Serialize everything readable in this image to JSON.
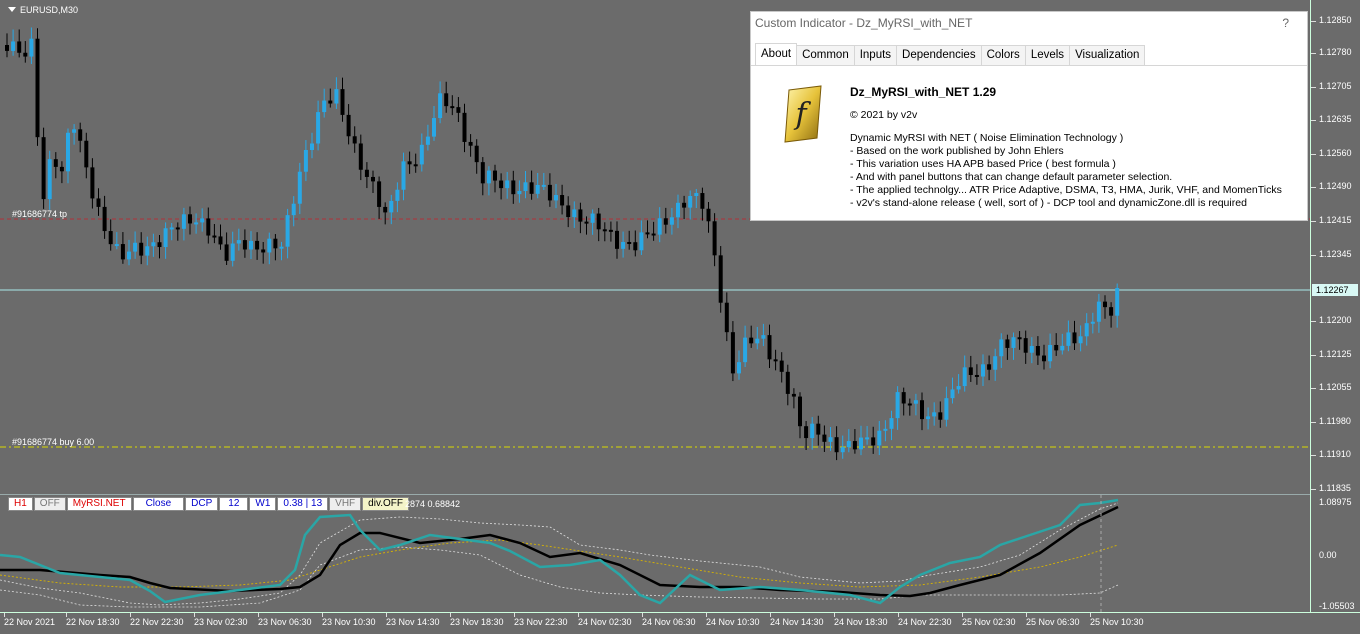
{
  "chart": {
    "symbol": "EURUSD,M30",
    "tp_label": "#91686774 tp",
    "buy_label": "#91686774 buy 6.00",
    "price_ticks": [
      "1.12850",
      "1.12780",
      "1.12705",
      "1.12635",
      "1.12560",
      "1.12490",
      "1.12415",
      "1.12345",
      "1.12200",
      "1.12125",
      "1.12055",
      "1.11980",
      "1.11910",
      "1.11835"
    ],
    "current_price": "1.12267",
    "sub_ticks": [
      "1.08975",
      "0.00",
      "-1.05503"
    ],
    "time_labels": [
      "22 Nov 2021",
      "22 Nov 18:30",
      "22 Nov 22:30",
      "23 Nov 02:30",
      "23 Nov 06:30",
      "23 Nov 10:30",
      "23 Nov 14:30",
      "23 Nov 18:30",
      "23 Nov 22:30",
      "24 Nov 02:30",
      "24 Nov 06:30",
      "24 Nov 10:30",
      "24 Nov 14:30",
      "24 Nov 18:30",
      "24 Nov 22:30",
      "25 Nov 02:30",
      "25 Nov 06:30",
      "25 Nov 10:30"
    ],
    "colors": {
      "bull": "#29a8e6",
      "bear": "#000000",
      "bg": "#6b6b6b",
      "tp_line": "#b0303a",
      "buy_line": "#d8d800",
      "price_line": "#a8e8e8",
      "teal": "#2aa6a6"
    }
  },
  "subwindow": {
    "buttons": [
      "H1",
      "OFF",
      "MyRSI.NET",
      "Close",
      "DCP",
      "12",
      "W1",
      "0.38 | 13",
      "VHF",
      "div.OFF"
    ],
    "values": "2874 0.68842"
  },
  "dialog": {
    "title": "Custom Indicator - Dz_MyRSI_with_NET",
    "help": "?",
    "tabs": [
      "About",
      "Common",
      "Inputs",
      "Dependencies",
      "Colors",
      "Levels",
      "Visualization"
    ],
    "active_tab": "About",
    "name": "Dz_MyRSI_with_NET 1.29",
    "copyright": "© 2021 by v2v",
    "description": "Dynamic MyRSI with NET ( Noise Elimination Technology )\n- Based on the work published by John Ehlers\n- This variation uses HA APB based Price ( best formula )\n- And with panel buttons that can change default parameter selection.\n- The applied technolgy... ATR Price Adaptive, DSMA, T3, HMA, Jurik, VHF, and MomenTicks\n- v2v's stand-alone release ( well, sort of ) - DCP tool and dynamicZone.dll is required"
  }
}
